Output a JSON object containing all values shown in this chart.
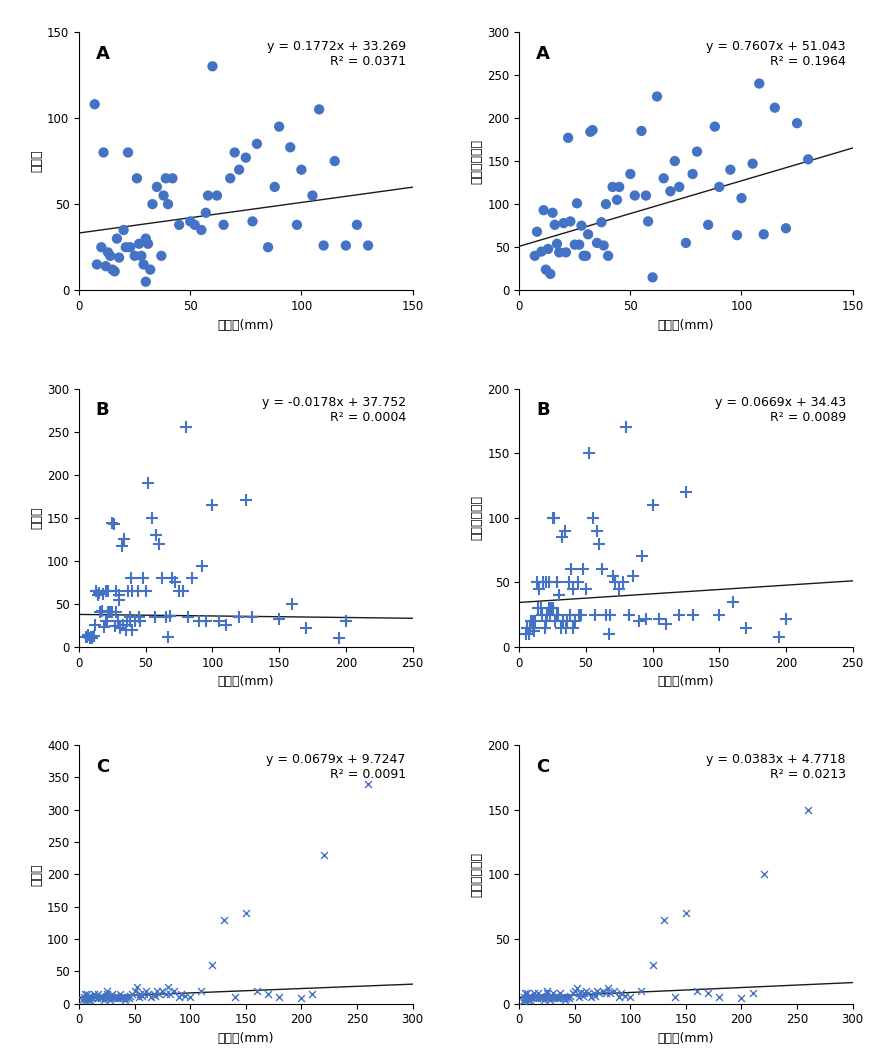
{
  "panels": [
    {
      "label": "A",
      "eq": "y = 0.1772x + 33.269",
      "r2": "R² = 0.0371",
      "marker": "o",
      "xlabel": "강수량(mm)",
      "ylabel": "발생수",
      "xlim": [
        0,
        150
      ],
      "ylim": [
        0,
        150
      ],
      "xticks": [
        0,
        50,
        100,
        150
      ],
      "yticks": [
        0,
        50,
        100,
        150
      ],
      "slope": 0.1772,
      "intercept": 33.269,
      "scatter_x": [
        7,
        8,
        10,
        11,
        12,
        13,
        14,
        15,
        16,
        17,
        18,
        20,
        21,
        22,
        23,
        25,
        26,
        27,
        28,
        29,
        30,
        30,
        31,
        32,
        33,
        35,
        37,
        38,
        39,
        40,
        42,
        45,
        50,
        52,
        55,
        57,
        58,
        60,
        62,
        65,
        68,
        70,
        72,
        75,
        78,
        80,
        85,
        88,
        90,
        95,
        98,
        100,
        105,
        108,
        110,
        115,
        120,
        125,
        130
      ],
      "scatter_y": [
        108,
        15,
        25,
        80,
        14,
        22,
        20,
        12,
        11,
        30,
        19,
        35,
        25,
        80,
        25,
        20,
        65,
        27,
        20,
        15,
        30,
        5,
        27,
        12,
        50,
        60,
        20,
        55,
        65,
        50,
        65,
        38,
        40,
        38,
        35,
        45,
        55,
        130,
        55,
        38,
        65,
        80,
        70,
        77,
        40,
        85,
        25,
        60,
        95,
        83,
        38,
        70,
        55,
        105,
        26,
        75,
        26,
        38,
        26
      ]
    },
    {
      "label": "A",
      "eq": "y = 0.7607x + 51.043",
      "r2": "R² = 0.1964",
      "marker": "o",
      "xlabel": "강수량(mm)",
      "ylabel": "만명당발생률",
      "xlim": [
        0,
        150
      ],
      "ylim": [
        0,
        300
      ],
      "xticks": [
        0,
        50,
        100,
        150
      ],
      "yticks": [
        0,
        50,
        100,
        150,
        200,
        250,
        300
      ],
      "slope": 0.7607,
      "intercept": 51.043,
      "scatter_x": [
        7,
        8,
        10,
        11,
        12,
        13,
        14,
        15,
        16,
        17,
        18,
        20,
        21,
        22,
        23,
        25,
        26,
        27,
        28,
        29,
        30,
        31,
        32,
        33,
        35,
        37,
        38,
        39,
        40,
        42,
        44,
        45,
        50,
        52,
        55,
        57,
        58,
        60,
        62,
        65,
        68,
        70,
        72,
        75,
        78,
        80,
        85,
        88,
        90,
        95,
        98,
        100,
        105,
        108,
        110,
        115,
        120,
        125,
        130
      ],
      "scatter_y": [
        40,
        68,
        45,
        93,
        24,
        48,
        19,
        90,
        76,
        54,
        44,
        78,
        44,
        177,
        80,
        53,
        101,
        53,
        75,
        40,
        40,
        65,
        184,
        186,
        55,
        79,
        52,
        100,
        40,
        120,
        105,
        120,
        135,
        110,
        185,
        110,
        80,
        15,
        225,
        130,
        115,
        150,
        120,
        55,
        135,
        161,
        76,
        190,
        120,
        140,
        64,
        107,
        147,
        240,
        65,
        212,
        72,
        194,
        152
      ]
    },
    {
      "label": "B",
      "eq": "y = -0.0178x + 37.752",
      "r2": "R² = 0.0004",
      "marker": "+",
      "xlabel": "강수량(mm)",
      "ylabel": "발생수",
      "xlim": [
        0,
        250
      ],
      "ylim": [
        0,
        300
      ],
      "xticks": [
        0,
        50,
        100,
        150,
        200,
        250
      ],
      "yticks": [
        0,
        50,
        100,
        150,
        200,
        250,
        300
      ],
      "slope": -0.0178,
      "intercept": 37.752,
      "scatter_x": [
        5,
        6,
        7,
        8,
        9,
        10,
        10,
        11,
        12,
        13,
        14,
        15,
        16,
        17,
        18,
        19,
        20,
        20,
        21,
        22,
        22,
        23,
        24,
        25,
        25,
        26,
        27,
        28,
        28,
        29,
        30,
        30,
        31,
        32,
        33,
        34,
        35,
        36,
        37,
        38,
        38,
        39,
        40,
        40,
        42,
        44,
        45,
        46,
        48,
        50,
        52,
        55,
        57,
        58,
        60,
        62,
        65,
        67,
        68,
        70,
        72,
        75,
        78,
        80,
        82,
        85,
        90,
        92,
        95,
        100,
        105,
        110,
        120,
        125,
        130,
        150,
        160,
        170,
        195,
        200
      ],
      "scatter_y": [
        12,
        12,
        14,
        10,
        12,
        12,
        10,
        13,
        25,
        65,
        60,
        63,
        41,
        42,
        62,
        23,
        30,
        65,
        30,
        40,
        65,
        40,
        41,
        144,
        40,
        143,
        24,
        40,
        65,
        30,
        60,
        55,
        22,
        117,
        25,
        125,
        20,
        30,
        65,
        35,
        30,
        80,
        65,
        20,
        30,
        65,
        35,
        30,
        80,
        65,
        190,
        150,
        35,
        130,
        120,
        80,
        35,
        12,
        36,
        80,
        75,
        65,
        65,
        255,
        35,
        80,
        30,
        94,
        30,
        165,
        30,
        25,
        35,
        170,
        35,
        32,
        50,
        22,
        10,
        30
      ]
    },
    {
      "label": "B",
      "eq": "y = 0.0669x + 34.43",
      "r2": "R² = 0.0089",
      "marker": "+",
      "xlabel": "강수량(mm)",
      "ylabel": "만명당발생률",
      "xlim": [
        0,
        250
      ],
      "ylim": [
        0,
        200
      ],
      "xticks": [
        0,
        50,
        100,
        150,
        200,
        250
      ],
      "yticks": [
        0,
        50,
        100,
        150,
        200
      ],
      "slope": 0.0669,
      "intercept": 34.43,
      "scatter_x": [
        5,
        6,
        7,
        8,
        9,
        10,
        10,
        11,
        12,
        13,
        14,
        15,
        16,
        17,
        18,
        19,
        20,
        20,
        21,
        22,
        22,
        23,
        24,
        25,
        25,
        26,
        27,
        28,
        28,
        29,
        30,
        30,
        31,
        32,
        33,
        34,
        35,
        36,
        37,
        38,
        38,
        39,
        40,
        40,
        42,
        44,
        45,
        46,
        48,
        50,
        52,
        55,
        57,
        58,
        60,
        62,
        65,
        67,
        68,
        70,
        72,
        75,
        78,
        80,
        82,
        85,
        90,
        92,
        95,
        100,
        105,
        110,
        120,
        125,
        130,
        150,
        160,
        170,
        195,
        200
      ],
      "scatter_y": [
        10,
        15,
        10,
        15,
        20,
        20,
        15,
        12,
        20,
        50,
        30,
        45,
        30,
        25,
        50,
        15,
        20,
        50,
        25,
        30,
        50,
        25,
        30,
        100,
        30,
        100,
        20,
        25,
        50,
        25,
        40,
        40,
        15,
        85,
        20,
        90,
        15,
        20,
        50,
        25,
        25,
        60,
        45,
        15,
        20,
        50,
        25,
        25,
        60,
        45,
        150,
        100,
        25,
        90,
        80,
        60,
        25,
        10,
        25,
        55,
        50,
        45,
        50,
        170,
        25,
        55,
        20,
        70,
        22,
        110,
        22,
        18,
        25,
        120,
        25,
        25,
        35,
        15,
        8,
        22
      ]
    },
    {
      "label": "C",
      "eq": "y = 0.0679x + 9.7247",
      "r2": "R² = 0.0091",
      "marker": "x",
      "xlabel": "강수량(mm)",
      "ylabel": "발생수",
      "xlim": [
        0,
        300
      ],
      "ylim": [
        0,
        400
      ],
      "xticks": [
        0,
        50,
        100,
        150,
        200,
        250,
        300
      ],
      "yticks": [
        0,
        50,
        100,
        150,
        200,
        250,
        300,
        350,
        400
      ],
      "slope": 0.0679,
      "intercept": 9.7247,
      "scatter_x": [
        3,
        4,
        5,
        5,
        6,
        7,
        8,
        8,
        9,
        10,
        10,
        11,
        12,
        13,
        14,
        15,
        16,
        17,
        18,
        19,
        20,
        20,
        21,
        22,
        23,
        24,
        25,
        25,
        26,
        27,
        28,
        29,
        30,
        30,
        31,
        32,
        33,
        34,
        35,
        36,
        37,
        38,
        39,
        40,
        41,
        42,
        44,
        45,
        46,
        48,
        50,
        52,
        54,
        55,
        57,
        58,
        60,
        62,
        65,
        67,
        68,
        70,
        72,
        75,
        78,
        80,
        82,
        85,
        90,
        92,
        95,
        100,
        110,
        120,
        130,
        140,
        150,
        160,
        170,
        180,
        200,
        210,
        220,
        260
      ],
      "scatter_y": [
        5,
        10,
        15,
        5,
        8,
        15,
        8,
        5,
        12,
        10,
        5,
        10,
        8,
        15,
        10,
        12,
        8,
        15,
        10,
        10,
        8,
        12,
        10,
        5,
        8,
        10,
        15,
        20,
        8,
        10,
        5,
        8,
        10,
        15,
        8,
        10,
        12,
        8,
        10,
        8,
        15,
        10,
        8,
        10,
        5,
        8,
        10,
        8,
        12,
        15,
        20,
        25,
        10,
        15,
        12,
        15,
        20,
        15,
        10,
        15,
        12,
        20,
        15,
        20,
        15,
        25,
        15,
        20,
        10,
        15,
        12,
        10,
        20,
        60,
        130,
        10,
        140,
        20,
        15,
        10,
        8,
        15,
        230,
        340
      ]
    },
    {
      "label": "C",
      "eq": "y = 0.0383x + 4.7718",
      "r2": "R² = 0.0213",
      "marker": "x",
      "xlabel": "강수량(mm)",
      "ylabel": "만명당발생률",
      "xlim": [
        0,
        300
      ],
      "ylim": [
        0,
        200
      ],
      "xticks": [
        0,
        50,
        100,
        150,
        200,
        250,
        300
      ],
      "yticks": [
        0,
        50,
        100,
        150,
        200
      ],
      "slope": 0.0383,
      "intercept": 4.7718,
      "scatter_x": [
        3,
        4,
        5,
        5,
        6,
        7,
        8,
        8,
        9,
        10,
        10,
        11,
        12,
        13,
        14,
        15,
        16,
        17,
        18,
        19,
        20,
        20,
        21,
        22,
        23,
        24,
        25,
        25,
        26,
        27,
        28,
        29,
        30,
        30,
        31,
        32,
        33,
        34,
        35,
        36,
        37,
        38,
        39,
        40,
        41,
        42,
        44,
        45,
        46,
        48,
        50,
        52,
        54,
        55,
        57,
        58,
        60,
        62,
        65,
        67,
        68,
        70,
        72,
        75,
        78,
        80,
        82,
        85,
        90,
        92,
        95,
        100,
        110,
        120,
        130,
        140,
        150,
        160,
        170,
        180,
        200,
        210,
        220,
        260
      ],
      "scatter_y": [
        2,
        5,
        8,
        3,
        4,
        8,
        4,
        3,
        6,
        5,
        3,
        5,
        4,
        8,
        5,
        6,
        4,
        8,
        5,
        5,
        4,
        6,
        5,
        3,
        4,
        5,
        8,
        10,
        4,
        5,
        3,
        4,
        5,
        8,
        4,
        5,
        6,
        4,
        5,
        4,
        8,
        5,
        4,
        5,
        3,
        4,
        5,
        4,
        6,
        8,
        10,
        12,
        5,
        8,
        6,
        8,
        10,
        8,
        5,
        8,
        6,
        10,
        8,
        10,
        8,
        12,
        8,
        10,
        5,
        8,
        6,
        5,
        10,
        30,
        65,
        5,
        70,
        10,
        8,
        5,
        4,
        8,
        100,
        150
      ]
    }
  ],
  "marker_color": "#4472C4",
  "line_color": "#1a1a1a",
  "label_fontsize": 9,
  "tick_fontsize": 8.5,
  "eq_fontsize": 9,
  "panel_label_fontsize": 13
}
